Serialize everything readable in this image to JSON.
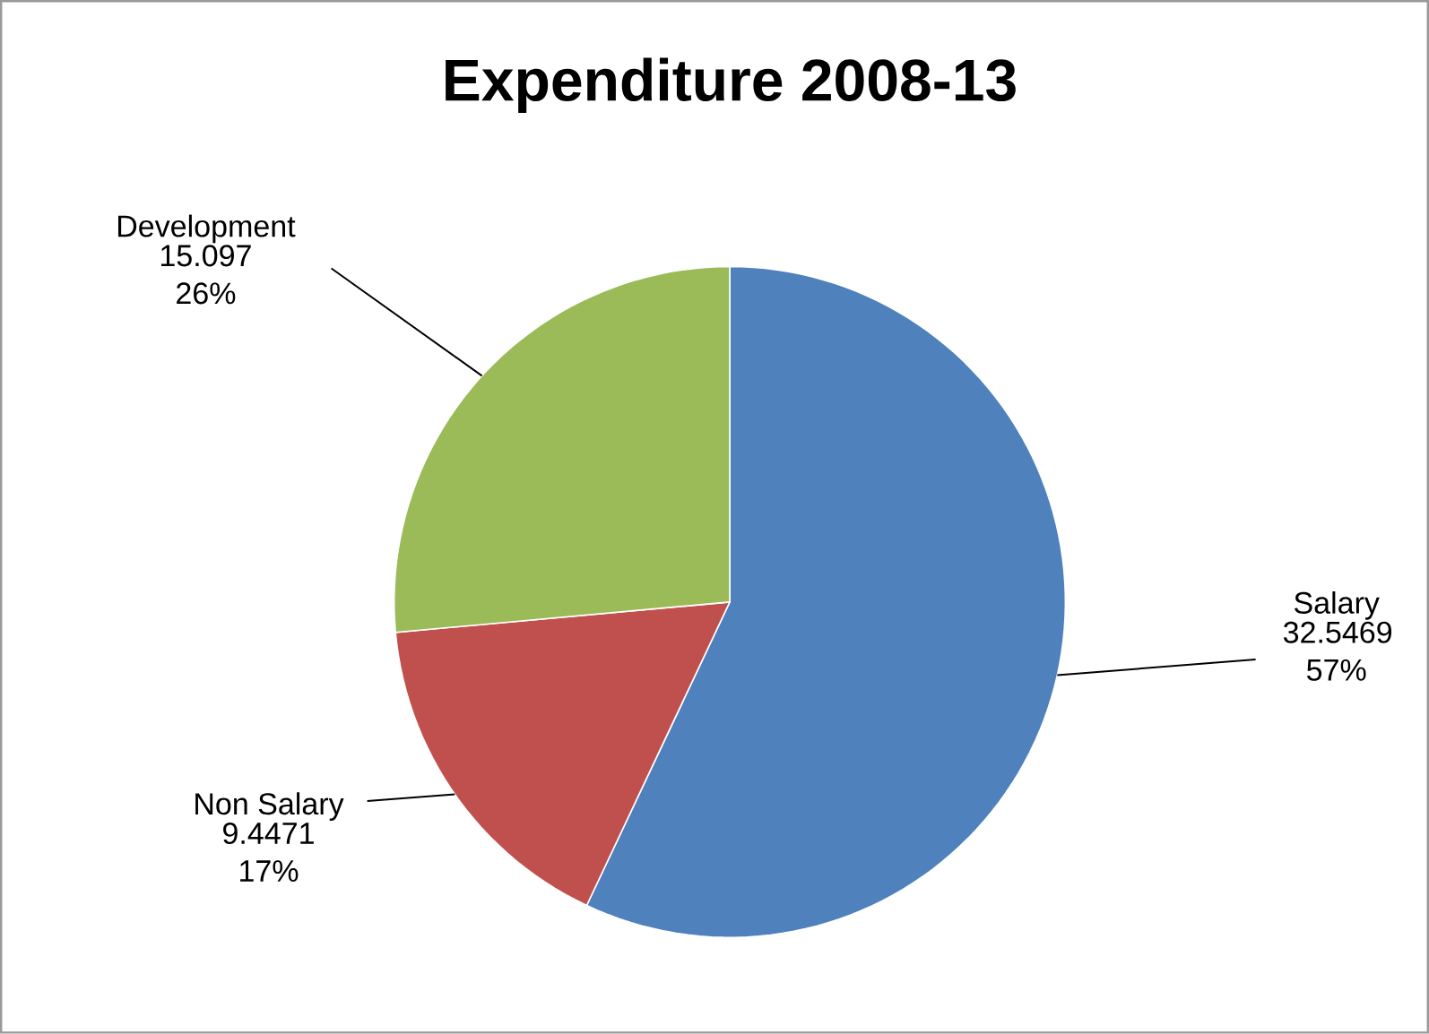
{
  "chart_data": {
    "type": "pie",
    "title": "Expenditure 2008-13",
    "categories": [
      "Salary",
      "Non Salary",
      "Development"
    ],
    "values": [
      32.5469,
      9.4471,
      15.097
    ],
    "colors": [
      "#4f81bd",
      "#c0504d",
      "#9bbb59"
    ],
    "value_labels": [
      "32.5469 57%",
      "9.4471 17%",
      "15.097 26%"
    ]
  }
}
